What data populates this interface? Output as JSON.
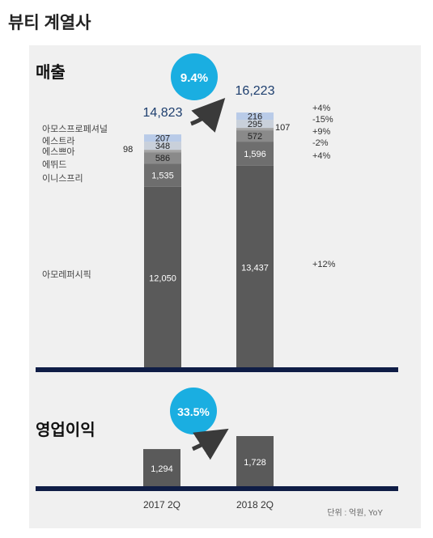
{
  "page": {
    "title": "뷰티 계열사"
  },
  "colors": {
    "bar_main": "#5a5a5a",
    "bar_innisfree": "#6e6e6e",
    "bar_etude": "#8a8a8a",
    "bar_espoir": "#a4a4a4",
    "bar_aestura": "#c9d0da",
    "bar_pro": "#b9cbe8",
    "baseline": "#0f1d46",
    "badge": "#1aaee1",
    "total_text": "#1d3e6e",
    "panel": "#f0f0f0"
  },
  "chart_data": [
    {
      "type": "bar",
      "stacked": true,
      "title": "매출",
      "categories": [
        "2017 2Q",
        "2018 2Q"
      ],
      "totals": [
        14823,
        16223
      ],
      "total_labels": [
        "14,823",
        "16,223"
      ],
      "growth_badge": "9.4%",
      "series": [
        {
          "name": "아모레퍼시픽",
          "values": [
            12050,
            13437
          ],
          "labels": [
            "12,050",
            "13,437"
          ],
          "yoy": "+12%"
        },
        {
          "name": "이니스프리",
          "values": [
            1535,
            1596
          ],
          "labels": [
            "1,535",
            "1,596"
          ],
          "yoy": "+4%"
        },
        {
          "name": "에뛰드",
          "values": [
            586,
            572
          ],
          "labels": [
            "586",
            "572"
          ],
          "yoy": "-2%"
        },
        {
          "name": "에스쁘아",
          "values": [
            98,
            107
          ],
          "labels": [
            "98",
            "107"
          ],
          "yoy": "+9%"
        },
        {
          "name": "에스트라",
          "values": [
            348,
            295
          ],
          "labels": [
            "348",
            "295"
          ],
          "yoy": "-15%"
        },
        {
          "name": "아모스프로페셔널",
          "values": [
            207,
            216
          ],
          "labels": [
            "207",
            "216"
          ],
          "yoy": "+4%"
        }
      ]
    },
    {
      "type": "bar",
      "title": "영업이익",
      "categories": [
        "2017 2Q",
        "2018 2Q"
      ],
      "values": [
        1294,
        1728
      ],
      "labels": [
        "1,294",
        "1,728"
      ],
      "growth_badge": "33.5%"
    }
  ],
  "footer": {
    "unit": "단위 : 억원, YoY"
  }
}
